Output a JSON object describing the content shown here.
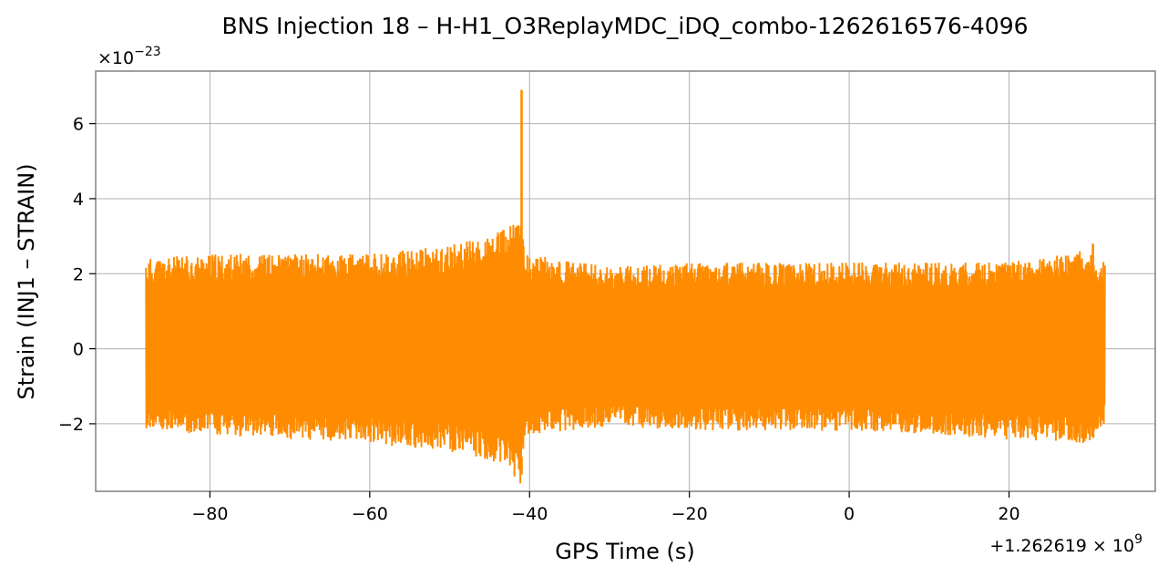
{
  "chart_data": {
    "type": "line",
    "title": "BNS Injection 18 – H-H1_O3ReplayMDC_iDQ_combo-1262616576-4096",
    "xlabel": "GPS Time (s)",
    "ylabel": "Strain (INJ1 – STRAIN)",
    "x_offset_label_main": "+1.262619",
    "x_offset_label_exp": "9",
    "y_scale_label_base": "×10",
    "y_scale_label_exp": "−23",
    "xlim": [
      -94.3,
      38.3
    ],
    "ylim": [
      -3.8,
      7.4
    ],
    "grid": true,
    "line_color": "#ff8c00",
    "x_ticks": [
      {
        "value": -80,
        "label": "−80"
      },
      {
        "value": -60,
        "label": "−60"
      },
      {
        "value": -40,
        "label": "−40"
      },
      {
        "value": -20,
        "label": "−20"
      },
      {
        "value": 0,
        "label": "0"
      },
      {
        "value": 20,
        "label": "20"
      }
    ],
    "y_ticks": [
      {
        "value": -2,
        "label": "−2"
      },
      {
        "value": 0,
        "label": "0"
      },
      {
        "value": 2,
        "label": "2"
      },
      {
        "value": 4,
        "label": "4"
      },
      {
        "value": 6,
        "label": "6"
      }
    ],
    "series": [
      {
        "x_start": -88.0,
        "x_end": 32.0,
        "envelope": [
          {
            "x": -88.0,
            "upper": 2.1,
            "lower": -1.9
          },
          {
            "x": -80.0,
            "upper": 2.2,
            "lower": -2.0
          },
          {
            "x": -70.0,
            "upper": 2.2,
            "lower": -2.1
          },
          {
            "x": -60.0,
            "upper": 2.2,
            "lower": -2.2
          },
          {
            "x": -50.0,
            "upper": 2.4,
            "lower": -2.4
          },
          {
            "x": -45.0,
            "upper": 2.6,
            "lower": -2.6
          },
          {
            "x": -42.0,
            "upper": 2.9,
            "lower": -3.0
          },
          {
            "x": -41.0,
            "upper": 3.0,
            "lower": -3.2
          },
          {
            "x": -40.5,
            "upper": 2.2,
            "lower": -2.0
          },
          {
            "x": -30.0,
            "upper": 1.9,
            "lower": -1.8
          },
          {
            "x": -20.0,
            "upper": 2.0,
            "lower": -1.9
          },
          {
            "x": -10.0,
            "upper": 2.0,
            "lower": -1.9
          },
          {
            "x": 0.0,
            "upper": 2.0,
            "lower": -1.9
          },
          {
            "x": 10.0,
            "upper": 2.0,
            "lower": -2.0
          },
          {
            "x": 20.0,
            "upper": 2.0,
            "lower": -2.1
          },
          {
            "x": 30.0,
            "upper": 2.3,
            "lower": -2.2
          },
          {
            "x": 32.0,
            "upper": 2.0,
            "lower": -1.8
          }
        ],
        "peaks": [
          {
            "x": -41.0,
            "y": 6.9
          },
          {
            "x": -41.0,
            "y": -3.35
          },
          {
            "x": 30.5,
            "y": 2.8
          }
        ]
      }
    ]
  }
}
